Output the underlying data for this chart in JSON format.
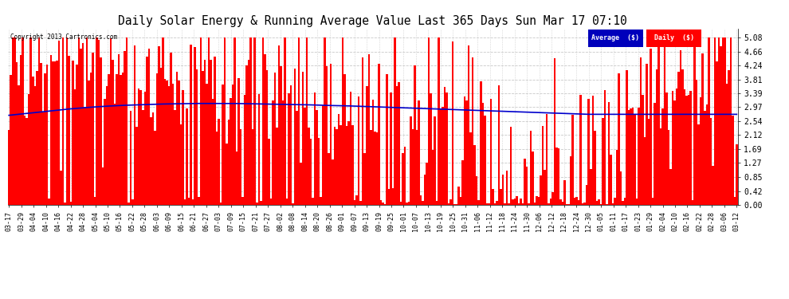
{
  "title": "Daily Solar Energy & Running Average Value Last 365 Days Sun Mar 17 07:10",
  "copyright": "Copyright 2013 Cartronics.com",
  "yticks": [
    0.0,
    0.42,
    0.85,
    1.27,
    1.69,
    2.12,
    2.54,
    2.97,
    3.39,
    3.81,
    4.24,
    4.66,
    5.08
  ],
  "ylim": [
    0.0,
    5.36
  ],
  "bar_color": "#ff0000",
  "avg_line_color": "#0000cc",
  "background_color": "#ffffff",
  "plot_bg_color": "#ffffff",
  "grid_color": "#bbbbbb",
  "title_fontsize": 10.5,
  "legend_avg_bg": "#0000bb",
  "legend_daily_bg": "#ff0000",
  "legend_text_color": "#ffffff",
  "x_labels": [
    "03-17",
    "03-29",
    "04-04",
    "04-10",
    "04-16",
    "04-22",
    "04-28",
    "05-04",
    "05-10",
    "05-16",
    "05-22",
    "05-28",
    "06-03",
    "06-09",
    "06-15",
    "06-21",
    "06-27",
    "07-03",
    "07-09",
    "07-15",
    "07-21",
    "07-27",
    "08-02",
    "08-08",
    "08-14",
    "08-20",
    "08-26",
    "09-01",
    "09-07",
    "09-13",
    "09-19",
    "09-25",
    "10-01",
    "10-07",
    "10-13",
    "10-19",
    "10-25",
    "10-31",
    "11-06",
    "11-12",
    "11-18",
    "11-24",
    "11-30",
    "12-06",
    "12-12",
    "12-18",
    "12-24",
    "12-30",
    "01-05",
    "01-11",
    "01-17",
    "01-23",
    "01-29",
    "02-04",
    "02-10",
    "02-16",
    "02-22",
    "02-28",
    "03-06",
    "03-12"
  ],
  "num_bars": 365,
  "avg_line_points": [
    2.72,
    2.78,
    2.84,
    2.9,
    2.95,
    2.99,
    3.02,
    3.04,
    3.06,
    3.07,
    3.08,
    3.08,
    3.08,
    3.07,
    3.06,
    3.05,
    3.04,
    3.02,
    3.01,
    2.99,
    2.97,
    2.95,
    2.93,
    2.91,
    2.89,
    2.87,
    2.85,
    2.83,
    2.81,
    2.79,
    2.77,
    2.75,
    2.75,
    2.75,
    2.75,
    2.75,
    2.75,
    2.75,
    2.75,
    2.75
  ]
}
